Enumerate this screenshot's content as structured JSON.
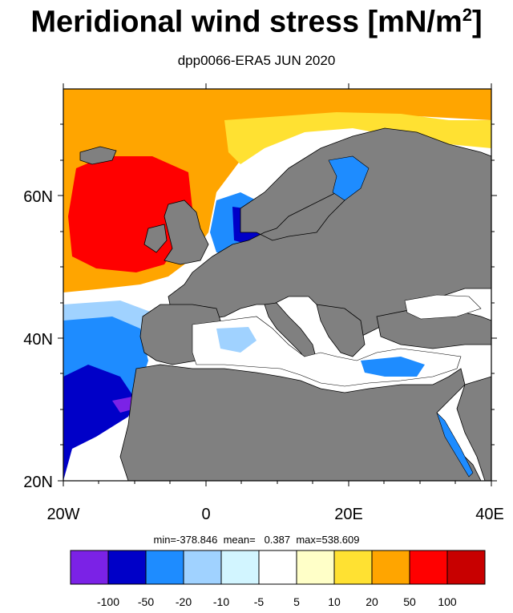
{
  "title": "Meridional wind stress [mN/m",
  "title_superscript": "2",
  "title_suffix": "]",
  "subtitle": "dpp0066-ERA5  JUN 2020",
  "axes": {
    "y_ticks": [
      "60N",
      "40N",
      "20N"
    ],
    "x_ticks": [
      "20W",
      "0",
      "20E",
      "40E"
    ]
  },
  "stats": {
    "min_label": "min=",
    "min": "-378.846",
    "mean_label": "mean=",
    "mean": "0.387",
    "max_label": "max=",
    "max": "538.609"
  },
  "colorbar": {
    "colors": [
      "#7b22e6",
      "#0000c8",
      "#1e8cff",
      "#a0d2ff",
      "#d2f5ff",
      "#ffffff",
      "#ffffc8",
      "#ffe132",
      "#ffa500",
      "#ff0000",
      "#c80000"
    ],
    "labels": [
      "-100",
      "-50",
      "-20",
      "-10",
      "-5",
      "5",
      "10",
      "20",
      "50",
      "100"
    ]
  },
  "colors": {
    "land": "#808080",
    "coast": "#000000"
  }
}
